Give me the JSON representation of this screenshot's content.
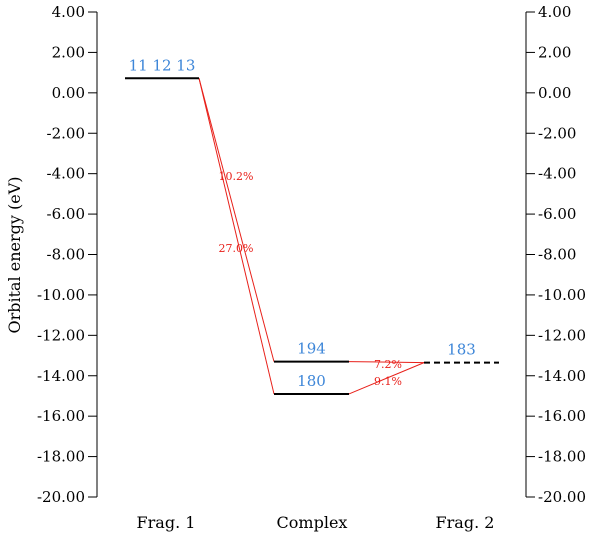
{
  "chart_data": {
    "type": "energy-level-diagram",
    "ylabel": "Orbital energy (eV)",
    "ylim": [
      -20,
      4
    ],
    "y_ticks": [
      "4.00",
      "2.00",
      "0.00",
      "-2.00",
      "-4.00",
      "-6.00",
      "-8.00",
      "-10.00",
      "-12.00",
      "-14.00",
      "-16.00",
      "-18.00",
      "-20.00"
    ],
    "categories": [
      "Frag. 1",
      "Complex",
      "Frag. 2"
    ],
    "levels": [
      {
        "column": "Frag. 1",
        "energy": 0.72,
        "label": "11 12 13",
        "style": "solid"
      },
      {
        "column": "Complex",
        "energy": -13.3,
        "label": "194",
        "style": "solid"
      },
      {
        "column": "Complex",
        "energy": -14.9,
        "label": "180",
        "style": "solid"
      },
      {
        "column": "Frag. 2",
        "energy": -13.35,
        "label": "183",
        "style": "dashed"
      }
    ],
    "connections": [
      {
        "from": "11 12 13",
        "to": "194",
        "label": "10.2%"
      },
      {
        "from": "11 12 13",
        "to": "180",
        "label": "27.0%"
      },
      {
        "from": "183",
        "to": "194",
        "label": "7.2%"
      },
      {
        "from": "183",
        "to": "180",
        "label": "9.1%"
      }
    ],
    "colors": {
      "level": "#000000",
      "orbital_label": "#3d86d8",
      "connection": "#e8201a",
      "axis": "#000000"
    }
  }
}
